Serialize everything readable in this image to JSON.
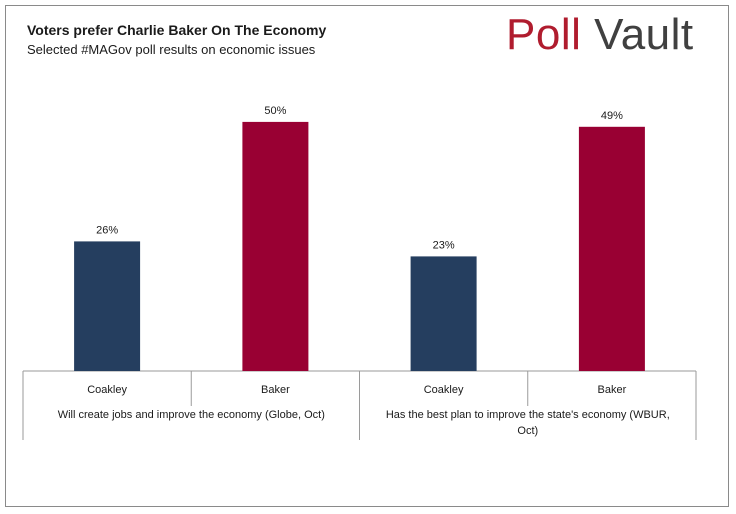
{
  "header": {
    "title": "Voters prefer Charlie Baker On The Economy",
    "subtitle": "Selected #MAGov poll results on economic issues"
  },
  "logo": {
    "part1": "Poll",
    "part2": "Vault"
  },
  "colors": {
    "coakley": "#253e5f",
    "baker": "#990033",
    "axis": "#9a9a9a",
    "text": "#1a1a1a"
  },
  "chart_data": {
    "type": "bar",
    "title": "Voters prefer Charlie Baker On The Economy",
    "subtitle": "Selected #MAGov poll results on economic issues",
    "xlabel": "",
    "ylabel": "",
    "ylim": [
      0,
      58
    ],
    "grid": false,
    "groups": [
      {
        "label": "Will create jobs and improve the economy (Globe, Oct)",
        "bars": [
          {
            "category": "Coakley",
            "value": 26,
            "label": "26%",
            "color": "#253e5f"
          },
          {
            "category": "Baker",
            "value": 50,
            "label": "50%",
            "color": "#990033"
          }
        ]
      },
      {
        "label": "Has the best plan to improve the state's economy (WBUR, Oct)",
        "bars": [
          {
            "category": "Coakley",
            "value": 23,
            "label": "23%",
            "color": "#253e5f"
          },
          {
            "category": "Baker",
            "value": 49,
            "label": "49%",
            "color": "#990033"
          }
        ]
      }
    ]
  }
}
